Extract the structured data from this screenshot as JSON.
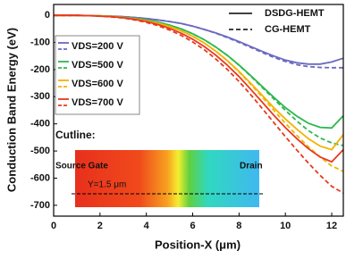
{
  "chart_data": {
    "type": "line",
    "xlabel": "Position-X (μm)",
    "ylabel": "Conduction Band Energy (eV)",
    "x": [
      0,
      0.5,
      1,
      1.5,
      2,
      2.5,
      3,
      3.5,
      4,
      4.5,
      5,
      5.5,
      6,
      6.5,
      7,
      7.5,
      8,
      8.5,
      9,
      9.5,
      10,
      10.5,
      11,
      11.5,
      12,
      12.5
    ],
    "xlim": [
      0,
      12.5
    ],
    "xticks": [
      0,
      2,
      4,
      6,
      8,
      10,
      12
    ],
    "ylim": [
      -740,
      40
    ],
    "yticks": [
      0,
      -100,
      -200,
      -300,
      -400,
      -500,
      -600,
      -700
    ],
    "line_styles": [
      "DSDG-HEMT",
      "CG-HEMT"
    ],
    "series": [
      {
        "name": "VDS=200 V",
        "color": "#6a6ac0",
        "values": [
          0,
          0,
          0,
          -1,
          -2,
          -3,
          -5,
          -8,
          -12,
          -17,
          -23,
          -30,
          -40,
          -52,
          -65,
          -80,
          -97,
          -115,
          -133,
          -150,
          -165,
          -175,
          -180,
          -180,
          -172,
          -158
        ],
        "values_cg": [
          0,
          0,
          0,
          -1,
          -2,
          -3,
          -5,
          -8,
          -12,
          -17,
          -23,
          -30,
          -40,
          -52,
          -66,
          -82,
          -100,
          -118,
          -137,
          -155,
          -170,
          -182,
          -189,
          -192,
          -193,
          -193
        ]
      },
      {
        "name": "VDS=500 V",
        "color": "#2db84e",
        "values": [
          0,
          0,
          0,
          -1,
          -2,
          -4,
          -7,
          -11,
          -17,
          -25,
          -36,
          -50,
          -68,
          -90,
          -117,
          -148,
          -183,
          -222,
          -262,
          -302,
          -340,
          -372,
          -398,
          -413,
          -415,
          -370
        ],
        "values_cg": [
          0,
          0,
          0,
          -1,
          -2,
          -4,
          -7,
          -11,
          -17,
          -25,
          -36,
          -50,
          -68,
          -90,
          -117,
          -148,
          -184,
          -224,
          -266,
          -308,
          -350,
          -390,
          -425,
          -452,
          -470,
          -480
        ]
      },
      {
        "name": "VDS=600 V",
        "color": "#f0b400",
        "values": [
          0,
          0,
          0,
          -1,
          -2,
          -4,
          -8,
          -13,
          -20,
          -29,
          -41,
          -57,
          -77,
          -102,
          -132,
          -167,
          -207,
          -250,
          -295,
          -340,
          -382,
          -420,
          -455,
          -482,
          -495,
          -440
        ],
        "values_cg": [
          0,
          0,
          0,
          -1,
          -2,
          -4,
          -8,
          -13,
          -20,
          -29,
          -41,
          -57,
          -77,
          -102,
          -132,
          -168,
          -209,
          -254,
          -301,
          -350,
          -398,
          -443,
          -485,
          -522,
          -555,
          -575
        ]
      },
      {
        "name": "VDS=700 V",
        "color": "#e8391f",
        "values": [
          0,
          0,
          0,
          -1,
          -3,
          -5,
          -9,
          -15,
          -23,
          -34,
          -48,
          -66,
          -88,
          -115,
          -147,
          -184,
          -226,
          -272,
          -320,
          -368,
          -414,
          -455,
          -492,
          -522,
          -540,
          -495
        ],
        "values_cg": [
          0,
          0,
          0,
          -1,
          -3,
          -6,
          -10,
          -17,
          -26,
          -38,
          -54,
          -74,
          -98,
          -127,
          -161,
          -200,
          -244,
          -292,
          -343,
          -395,
          -447,
          -497,
          -545,
          -590,
          -630,
          -655
        ]
      }
    ],
    "inset": {
      "title": "Cutline:",
      "left_label": "Source Gate",
      "right_label": "Drain",
      "line_label": "Y=1.5 μm"
    }
  }
}
